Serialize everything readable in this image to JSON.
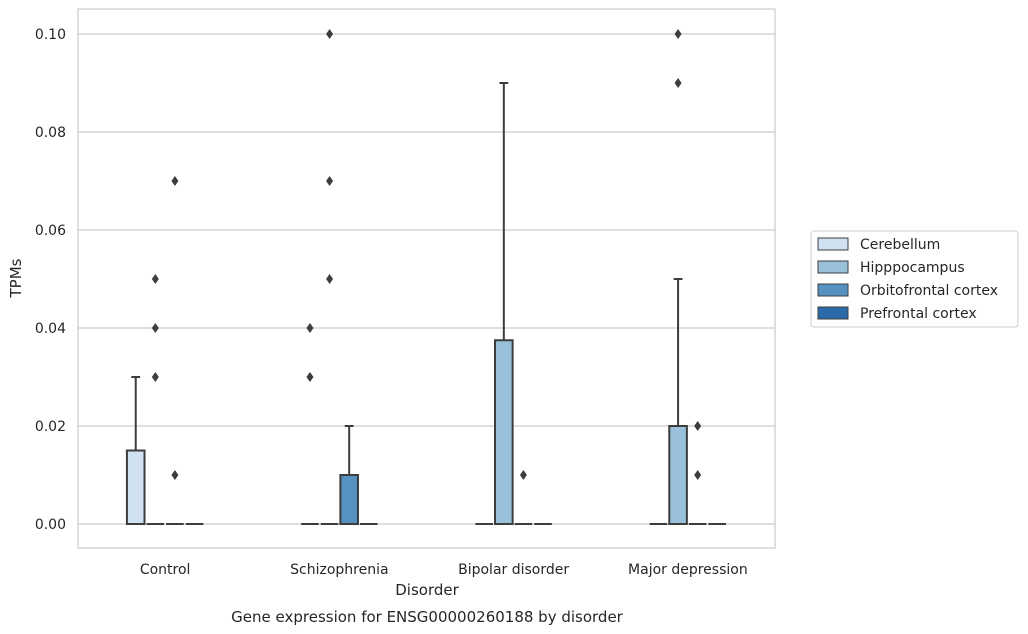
{
  "chart_data": {
    "type": "box",
    "title": "",
    "caption": "Gene expression for ENSG00000260188 by disorder",
    "xlabel": "Disorder",
    "ylabel": "TPMs",
    "ylim": [
      -0.005,
      0.105
    ],
    "yticks": [
      0.0,
      0.02,
      0.04,
      0.06,
      0.08,
      0.1
    ],
    "ytick_labels": [
      "0.00",
      "0.02",
      "0.04",
      "0.06",
      "0.08",
      "0.10"
    ],
    "grid": "horizontal",
    "legend_position": "right",
    "categories": [
      "Control",
      "Schizophrenia",
      "Bipolar disorder",
      "Major depression"
    ],
    "series": [
      {
        "name": "Cerebellum",
        "color": "#d0e1f2",
        "boxes": [
          {
            "q1": 0.0,
            "median": 0.0,
            "q3": 0.015,
            "whislo": 0.0,
            "whishi": 0.03,
            "fliers": []
          },
          {
            "q1": 0.0,
            "median": 0.0,
            "q3": 0.0,
            "whislo": 0.0,
            "whishi": 0.0,
            "fliers": [
              0.03,
              0.04
            ]
          },
          {
            "q1": 0.0,
            "median": 0.0,
            "q3": 0.0,
            "whislo": 0.0,
            "whishi": 0.0,
            "fliers": []
          },
          {
            "q1": 0.0,
            "median": 0.0,
            "q3": 0.0,
            "whislo": 0.0,
            "whishi": 0.0,
            "fliers": []
          }
        ]
      },
      {
        "name": "Hipppocampus",
        "color": "#9ac1da",
        "boxes": [
          {
            "q1": 0.0,
            "median": 0.0,
            "q3": 0.0,
            "whislo": 0.0,
            "whishi": 0.0,
            "fliers": [
              0.03,
              0.04,
              0.05
            ]
          },
          {
            "q1": 0.0,
            "median": 0.0,
            "q3": 0.0,
            "whislo": 0.0,
            "whishi": 0.0,
            "fliers": [
              0.05,
              0.07,
              0.1
            ]
          },
          {
            "q1": 0.0,
            "median": 0.0,
            "q3": 0.0375,
            "whislo": 0.0,
            "whishi": 0.09,
            "fliers": []
          },
          {
            "q1": 0.0,
            "median": 0.0,
            "q3": 0.02,
            "whislo": 0.0,
            "whishi": 0.05,
            "fliers": [
              0.09,
              0.1
            ]
          }
        ]
      },
      {
        "name": "Orbitofrontal cortex",
        "color": "#5591c1",
        "boxes": [
          {
            "q1": 0.0,
            "median": 0.0,
            "q3": 0.0,
            "whislo": 0.0,
            "whishi": 0.0,
            "fliers": [
              0.01,
              0.07
            ]
          },
          {
            "q1": 0.0,
            "median": 0.0,
            "q3": 0.01,
            "whislo": 0.0,
            "whishi": 0.02,
            "fliers": []
          },
          {
            "q1": 0.0,
            "median": 0.0,
            "q3": 0.0,
            "whislo": 0.0,
            "whishi": 0.0,
            "fliers": [
              0.01
            ]
          },
          {
            "q1": 0.0,
            "median": 0.0,
            "q3": 0.0,
            "whislo": 0.0,
            "whishi": 0.0,
            "fliers": [
              0.01,
              0.02
            ]
          }
        ]
      },
      {
        "name": "Prefrontal cortex",
        "color": "#2b6aa9",
        "boxes": [
          {
            "q1": 0.0,
            "median": 0.0,
            "q3": 0.0,
            "whislo": 0.0,
            "whishi": 0.0,
            "fliers": []
          },
          {
            "q1": 0.0,
            "median": 0.0,
            "q3": 0.0,
            "whislo": 0.0,
            "whishi": 0.0,
            "fliers": []
          },
          {
            "q1": 0.0,
            "median": 0.0,
            "q3": 0.0,
            "whislo": 0.0,
            "whishi": 0.0,
            "fliers": []
          },
          {
            "q1": 0.0,
            "median": 0.0,
            "q3": 0.0,
            "whislo": 0.0,
            "whishi": 0.0,
            "fliers": []
          }
        ]
      }
    ]
  }
}
